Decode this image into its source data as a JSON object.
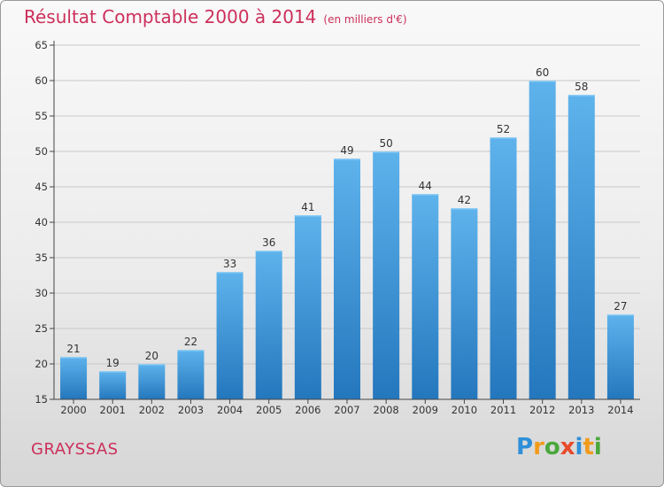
{
  "header": {
    "title": "Résultat Comptable 2000 à 2014",
    "subtitle": "(en milliers d'€)"
  },
  "footer": {
    "commune": "GRAYSSAS",
    "logo": {
      "text": "Proxiti",
      "letters": [
        {
          "char": "P",
          "color": "#2f8fd8"
        },
        {
          "char": "r",
          "color": "#f29b1b"
        },
        {
          "char": "o",
          "color": "#4aa83c"
        },
        {
          "char": "x",
          "color": "#e84a2c"
        },
        {
          "char": "i",
          "color": "#2f8fd8"
        },
        {
          "char": "t",
          "color": "#f29b1b"
        },
        {
          "char": "i",
          "color": "#4aa83c"
        }
      ]
    }
  },
  "colors": {
    "title": "#cc2f5a",
    "bar_top": "#5eb3ec",
    "bar_bottom": "#2477bd",
    "grid": "#c8c8c8",
    "axis": "#444444"
  },
  "chart_data": {
    "type": "bar",
    "title": "Résultat Comptable 2000 à 2014",
    "subtitle": "(en milliers d'€)",
    "xlabel": "",
    "ylabel": "",
    "categories": [
      "2000",
      "2001",
      "2002",
      "2003",
      "2004",
      "2005",
      "2006",
      "2007",
      "2008",
      "2009",
      "2010",
      "2011",
      "2012",
      "2013",
      "2014"
    ],
    "values": [
      21,
      19,
      20,
      22,
      33,
      36,
      41,
      49,
      50,
      44,
      42,
      52,
      60,
      58,
      27
    ],
    "ylim": [
      15,
      65
    ],
    "yticks": [
      15,
      20,
      25,
      30,
      35,
      40,
      45,
      50,
      55,
      60,
      65
    ],
    "grid": true,
    "data_labels": true
  }
}
